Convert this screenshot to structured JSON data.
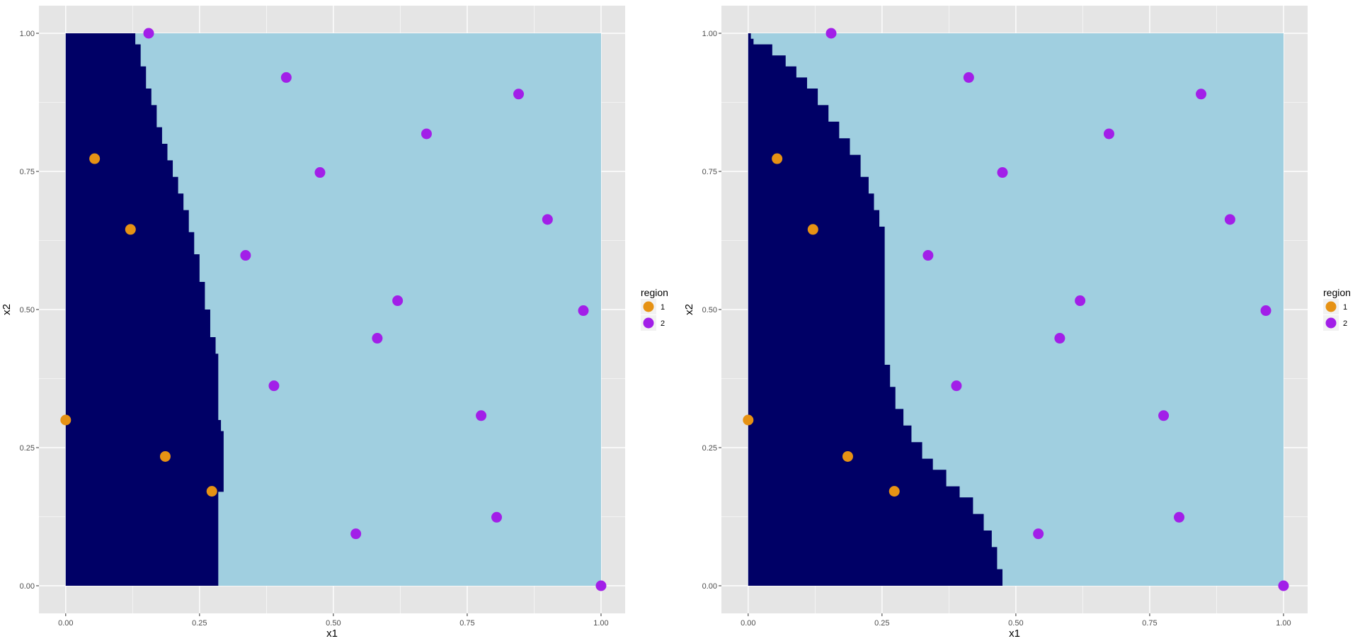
{
  "colors": {
    "panel_bg": "#e5e5e5",
    "grid_major": "#ffffff",
    "region1_fill": "#000066",
    "region2_fill": "#a0cfe0",
    "point_region1": "#e69214",
    "point_region2": "#a21fe8"
  },
  "chart_data": [
    {
      "type": "scatter",
      "title": "",
      "xlabel": "x1",
      "ylabel": "x2",
      "xlim": [
        -0.05,
        1.045
      ],
      "ylim": [
        -0.05,
        1.05
      ],
      "x_ticks": [
        "0.00",
        "0.25",
        "0.50",
        "0.75",
        "1.00"
      ],
      "y_ticks": [
        "0.00",
        "0.25",
        "0.50",
        "0.75",
        "1.00"
      ],
      "grid": true,
      "legend": {
        "title": "region",
        "position": "right",
        "entries": [
          "1",
          "2"
        ]
      },
      "background_regions": {
        "region1_fill": "#000066",
        "region2_fill": "#a0cfe0",
        "boundary": [
          [
            0.0,
            1.0
          ],
          [
            0.12,
            1.0
          ],
          [
            0.13,
            0.98
          ],
          [
            0.14,
            0.94
          ],
          [
            0.15,
            0.9
          ],
          [
            0.16,
            0.87
          ],
          [
            0.17,
            0.83
          ],
          [
            0.18,
            0.8
          ],
          [
            0.19,
            0.77
          ],
          [
            0.2,
            0.74
          ],
          [
            0.21,
            0.71
          ],
          [
            0.22,
            0.68
          ],
          [
            0.23,
            0.64
          ],
          [
            0.24,
            0.6
          ],
          [
            0.25,
            0.55
          ],
          [
            0.26,
            0.5
          ],
          [
            0.27,
            0.45
          ],
          [
            0.28,
            0.42
          ],
          [
            0.285,
            0.3
          ],
          [
            0.29,
            0.28
          ],
          [
            0.295,
            0.17
          ],
          [
            0.29,
            0.17
          ],
          [
            0.285,
            0.0
          ]
        ]
      },
      "series": [
        {
          "name": "1",
          "color": "#e69214",
          "points": [
            [
              0.054,
              0.773
            ],
            [
              0.121,
              0.645
            ],
            [
              0.0,
              0.3
            ],
            [
              0.186,
              0.234
            ],
            [
              0.273,
              0.171
            ]
          ]
        },
        {
          "name": "2",
          "color": "#a21fe8",
          "points": [
            [
              0.155,
              1.0
            ],
            [
              0.412,
              0.92
            ],
            [
              0.846,
              0.89
            ],
            [
              0.674,
              0.818
            ],
            [
              0.475,
              0.748
            ],
            [
              0.9,
              0.663
            ],
            [
              0.336,
              0.598
            ],
            [
              0.62,
              0.516
            ],
            [
              0.967,
              0.498
            ],
            [
              0.582,
              0.448
            ],
            [
              0.389,
              0.362
            ],
            [
              0.776,
              0.308
            ],
            [
              0.805,
              0.124
            ],
            [
              0.542,
              0.094
            ],
            [
              1.0,
              0.0
            ]
          ]
        }
      ]
    },
    {
      "type": "scatter",
      "title": "",
      "xlabel": "x1",
      "ylabel": "x2",
      "xlim": [
        -0.05,
        1.045
      ],
      "ylim": [
        -0.05,
        1.05
      ],
      "x_ticks": [
        "0.00",
        "0.25",
        "0.50",
        "0.75",
        "1.00"
      ],
      "y_ticks": [
        "0.00",
        "0.25",
        "0.50",
        "0.75",
        "1.00"
      ],
      "grid": true,
      "legend": {
        "title": "region",
        "position": "right",
        "entries": [
          "1",
          "2"
        ]
      },
      "background_regions": {
        "region1_fill": "#000066",
        "region2_fill": "#a0cfe0",
        "boundary": [
          [
            0.0,
            1.0
          ],
          [
            0.005,
            0.99
          ],
          [
            0.01,
            0.98
          ],
          [
            0.045,
            0.96
          ],
          [
            0.07,
            0.94
          ],
          [
            0.09,
            0.92
          ],
          [
            0.11,
            0.9
          ],
          [
            0.13,
            0.87
          ],
          [
            0.15,
            0.84
          ],
          [
            0.17,
            0.81
          ],
          [
            0.19,
            0.78
          ],
          [
            0.21,
            0.74
          ],
          [
            0.225,
            0.71
          ],
          [
            0.235,
            0.68
          ],
          [
            0.245,
            0.65
          ],
          [
            0.255,
            0.63
          ],
          [
            0.255,
            0.4
          ],
          [
            0.265,
            0.36
          ],
          [
            0.275,
            0.32
          ],
          [
            0.29,
            0.29
          ],
          [
            0.305,
            0.26
          ],
          [
            0.325,
            0.23
          ],
          [
            0.345,
            0.21
          ],
          [
            0.37,
            0.18
          ],
          [
            0.395,
            0.16
          ],
          [
            0.42,
            0.13
          ],
          [
            0.44,
            0.1
          ],
          [
            0.455,
            0.07
          ],
          [
            0.465,
            0.03
          ],
          [
            0.475,
            0.0
          ]
        ]
      },
      "series": [
        {
          "name": "1",
          "color": "#e69214",
          "points": [
            [
              0.054,
              0.773
            ],
            [
              0.121,
              0.645
            ],
            [
              0.0,
              0.3
            ],
            [
              0.186,
              0.234
            ],
            [
              0.273,
              0.171
            ]
          ]
        },
        {
          "name": "2",
          "color": "#a21fe8",
          "points": [
            [
              0.155,
              1.0
            ],
            [
              0.412,
              0.92
            ],
            [
              0.846,
              0.89
            ],
            [
              0.674,
              0.818
            ],
            [
              0.475,
              0.748
            ],
            [
              0.9,
              0.663
            ],
            [
              0.336,
              0.598
            ],
            [
              0.62,
              0.516
            ],
            [
              0.967,
              0.498
            ],
            [
              0.582,
              0.448
            ],
            [
              0.389,
              0.362
            ],
            [
              0.776,
              0.308
            ],
            [
              0.805,
              0.124
            ],
            [
              0.542,
              0.094
            ],
            [
              1.0,
              0.0
            ]
          ]
        }
      ]
    }
  ]
}
